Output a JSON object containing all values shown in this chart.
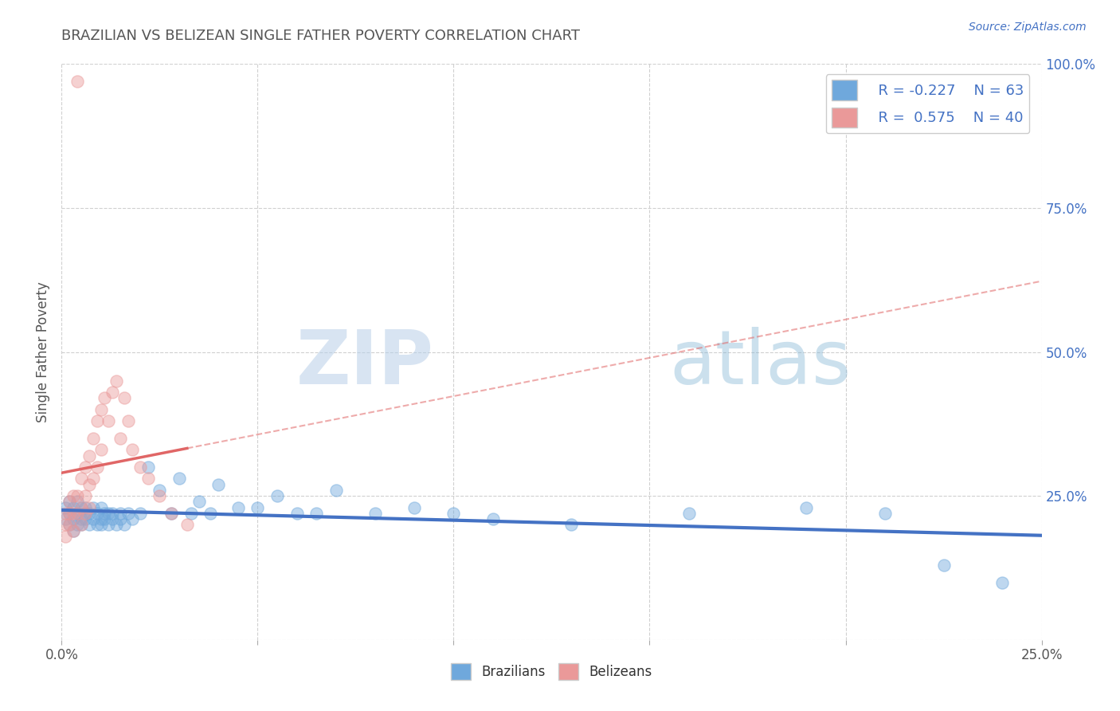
{
  "title": "BRAZILIAN VS BELIZEAN SINGLE FATHER POVERTY CORRELATION CHART",
  "source_text": "Source: ZipAtlas.com",
  "ylabel": "Single Father Poverty",
  "xlabel": "",
  "xlim": [
    0.0,
    0.25
  ],
  "ylim": [
    0.0,
    1.0
  ],
  "xticks": [
    0.0,
    0.05,
    0.1,
    0.15,
    0.2,
    0.25
  ],
  "xtick_labels": [
    "0.0%",
    "",
    "",
    "",
    "",
    "25.0%"
  ],
  "yticks_right": [
    0.0,
    0.25,
    0.5,
    0.75,
    1.0
  ],
  "ytick_labels_right": [
    "",
    "25.0%",
    "50.0%",
    "75.0%",
    "100.0%"
  ],
  "legend_r1": "R = -0.227",
  "legend_n1": "N = 63",
  "legend_r2": "R =  0.575",
  "legend_n2": "N = 40",
  "blue_color": "#6fa8dc",
  "pink_color": "#ea9999",
  "trend_blue": "#4472c4",
  "trend_pink": "#e06666",
  "background_color": "#ffffff",
  "grid_color": "#d0d0d0",
  "title_color": "#444444",
  "blue_scatter": {
    "x": [
      0.001,
      0.001,
      0.002,
      0.002,
      0.002,
      0.003,
      0.003,
      0.003,
      0.004,
      0.004,
      0.004,
      0.005,
      0.005,
      0.005,
      0.006,
      0.006,
      0.006,
      0.007,
      0.007,
      0.008,
      0.008,
      0.009,
      0.009,
      0.01,
      0.01,
      0.01,
      0.011,
      0.011,
      0.012,
      0.012,
      0.013,
      0.013,
      0.014,
      0.015,
      0.015,
      0.016,
      0.017,
      0.018,
      0.02,
      0.022,
      0.025,
      0.028,
      0.03,
      0.033,
      0.035,
      0.038,
      0.04,
      0.045,
      0.05,
      0.055,
      0.06,
      0.065,
      0.07,
      0.08,
      0.09,
      0.1,
      0.11,
      0.13,
      0.16,
      0.19,
      0.21,
      0.225,
      0.24
    ],
    "y": [
      0.23,
      0.21,
      0.22,
      0.2,
      0.24,
      0.21,
      0.23,
      0.19,
      0.22,
      0.2,
      0.24,
      0.21,
      0.23,
      0.2,
      0.22,
      0.21,
      0.23,
      0.2,
      0.22,
      0.21,
      0.23,
      0.2,
      0.22,
      0.21,
      0.23,
      0.2,
      0.22,
      0.21,
      0.22,
      0.2,
      0.22,
      0.21,
      0.2,
      0.22,
      0.21,
      0.2,
      0.22,
      0.21,
      0.22,
      0.3,
      0.26,
      0.22,
      0.28,
      0.22,
      0.24,
      0.22,
      0.27,
      0.23,
      0.23,
      0.25,
      0.22,
      0.22,
      0.26,
      0.22,
      0.23,
      0.22,
      0.21,
      0.2,
      0.22,
      0.23,
      0.22,
      0.13,
      0.1
    ]
  },
  "pink_scatter": {
    "x": [
      0.001,
      0.001,
      0.001,
      0.002,
      0.002,
      0.002,
      0.003,
      0.003,
      0.003,
      0.004,
      0.004,
      0.004,
      0.005,
      0.005,
      0.005,
      0.006,
      0.006,
      0.006,
      0.007,
      0.007,
      0.007,
      0.008,
      0.008,
      0.009,
      0.009,
      0.01,
      0.01,
      0.011,
      0.012,
      0.013,
      0.014,
      0.015,
      0.016,
      0.017,
      0.018,
      0.02,
      0.022,
      0.025,
      0.028,
      0.032
    ],
    "y": [
      0.2,
      0.22,
      0.18,
      0.22,
      0.2,
      0.24,
      0.22,
      0.25,
      0.19,
      0.97,
      0.22,
      0.25,
      0.28,
      0.23,
      0.2,
      0.3,
      0.25,
      0.22,
      0.32,
      0.27,
      0.23,
      0.35,
      0.28,
      0.38,
      0.3,
      0.4,
      0.33,
      0.42,
      0.38,
      0.43,
      0.45,
      0.35,
      0.42,
      0.38,
      0.33,
      0.3,
      0.28,
      0.25,
      0.22,
      0.2
    ]
  }
}
